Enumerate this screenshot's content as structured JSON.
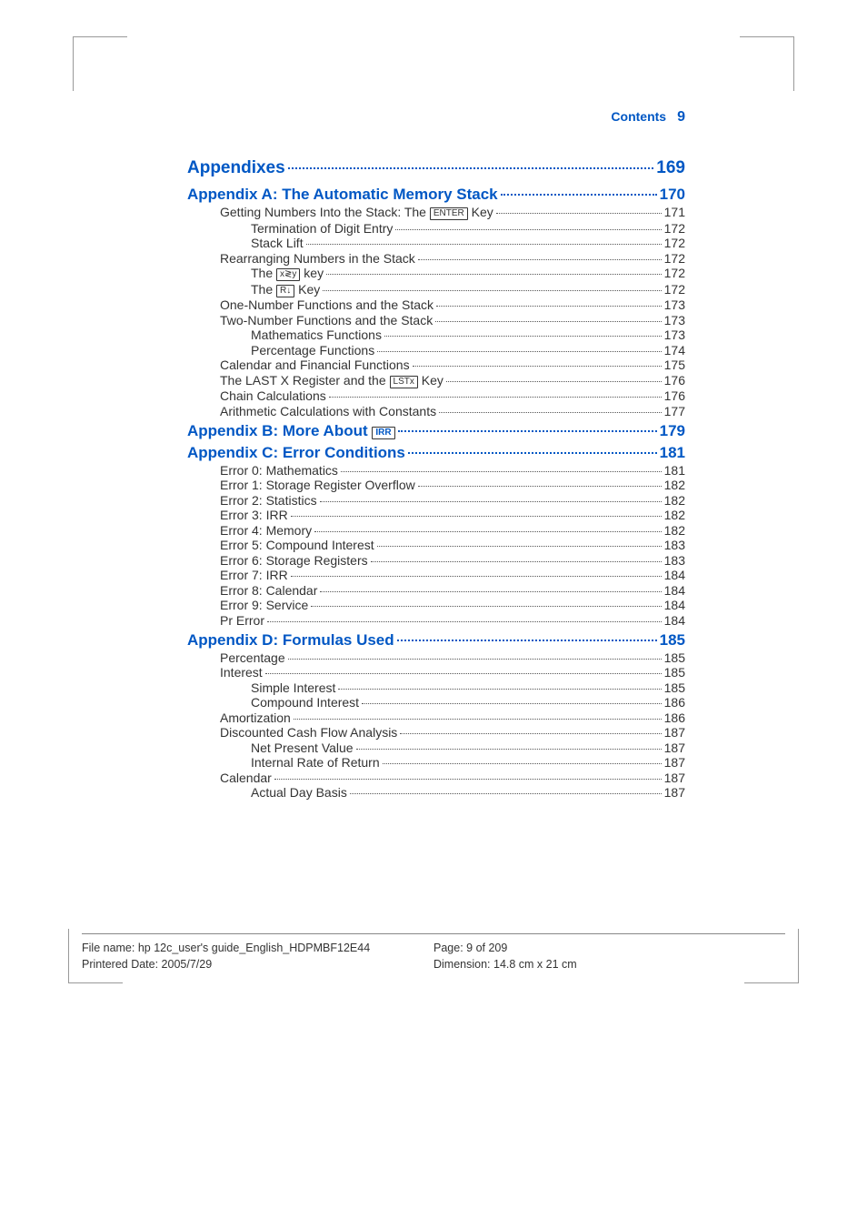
{
  "header": {
    "label": "Contents",
    "page": "9"
  },
  "sections": [
    {
      "type": "h1",
      "label": "Appendixes",
      "pg": "169"
    },
    {
      "type": "h2",
      "label": "Appendix A:  The Automatic Memory Stack ",
      "pg": "170"
    },
    {
      "indent": 1,
      "label": "Getting Numbers Into the Stack: The ",
      "key": "ENTER",
      "suffix": " Key",
      "pg": "171"
    },
    {
      "indent": 2,
      "label": "Termination of Digit Entry ",
      "pg": "172"
    },
    {
      "indent": 2,
      "label": "Stack Lift",
      "pg": "172"
    },
    {
      "indent": 1,
      "label": "Rearranging Numbers in the Stack ",
      "pg": "172"
    },
    {
      "indent": 2,
      "label": "The ",
      "key": "x≷y",
      "suffix": " key ",
      "pg": "172"
    },
    {
      "indent": 2,
      "label": "The ",
      "key": "R↓",
      "suffix": " Key",
      "pg": "172"
    },
    {
      "indent": 1,
      "label": "One-Number Functions and the Stack",
      "pg": "173"
    },
    {
      "indent": 1,
      "label": "Two-Number Functions and the Stack",
      "pg": "173"
    },
    {
      "indent": 2,
      "label": "Mathematics Functions ",
      "pg": "173"
    },
    {
      "indent": 2,
      "label": "Percentage Functions",
      "pg": "174"
    },
    {
      "indent": 1,
      "label": "Calendar and Financial Functions",
      "pg": "175"
    },
    {
      "indent": 1,
      "label": "The LAST X Register and the ",
      "key": "LSTx",
      "suffix": " Key ",
      "pg": "176"
    },
    {
      "indent": 1,
      "label": "Chain Calculations ",
      "pg": "176"
    },
    {
      "indent": 1,
      "label": "Arithmetic Calculations with Constants ",
      "pg": "177"
    },
    {
      "type": "h2",
      "label": "Appendix B:  More About ",
      "key": "IRR",
      "pg": "179"
    },
    {
      "type": "h2",
      "label": "Appendix C:  Error Conditions ",
      "pg": "181"
    },
    {
      "indent": 1,
      "label": "Error 0: Mathematics ",
      "pg": "181"
    },
    {
      "indent": 1,
      "label": "Error 1: Storage Register Overflow ",
      "pg": "182"
    },
    {
      "indent": 1,
      "label": "Error 2: Statistics ",
      "pg": "182"
    },
    {
      "indent": 1,
      "label": "Error 3: IRR",
      "pg": "182"
    },
    {
      "indent": 1,
      "label": "Error 4: Memory ",
      "pg": "182"
    },
    {
      "indent": 1,
      "label": "Error 5: Compound Interest",
      "pg": "183"
    },
    {
      "indent": 1,
      "label": "Error 6: Storage Registers",
      "pg": "183"
    },
    {
      "indent": 1,
      "label": "Error 7: IRR",
      "pg": "184"
    },
    {
      "indent": 1,
      "label": "Error 8: Calendar",
      "pg": "184"
    },
    {
      "indent": 1,
      "label": "Error 9: Service",
      "pg": "184"
    },
    {
      "indent": 1,
      "label": "Pr Error ",
      "pg": "184"
    },
    {
      "type": "h2",
      "label": "Appendix D:  Formulas Used ",
      "pg": "185"
    },
    {
      "indent": 1,
      "label": "Percentage ",
      "pg": "185"
    },
    {
      "indent": 1,
      "label": "Interest ",
      "pg": "185"
    },
    {
      "indent": 2,
      "label": "Simple Interest",
      "pg": "185"
    },
    {
      "indent": 2,
      "label": "Compound Interest",
      "pg": "186"
    },
    {
      "indent": 1,
      "label": "Amortization",
      "pg": "186"
    },
    {
      "indent": 1,
      "label": "Discounted Cash Flow Analysis",
      "pg": "187"
    },
    {
      "indent": 2,
      "label": "Net Present Value ",
      "pg": "187"
    },
    {
      "indent": 2,
      "label": "Internal Rate of Return ",
      "pg": "187"
    },
    {
      "indent": 1,
      "label": "Calendar ",
      "pg": "187"
    },
    {
      "indent": 2,
      "label": "Actual Day Basis ",
      "pg": "187"
    }
  ],
  "footer": {
    "left1": "File name: hp 12c_user's guide_English_HDPMBF12E44",
    "left2": "Printered Date: 2005/7/29",
    "right1": "Page: 9 of 209",
    "right2": "Dimension: 14.8 cm x 21 cm"
  }
}
